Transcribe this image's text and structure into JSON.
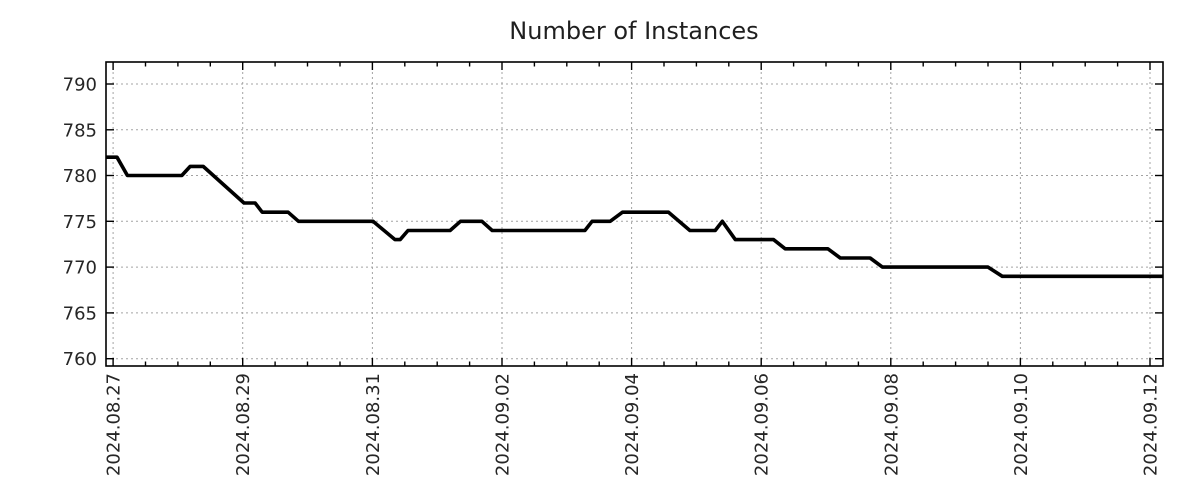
{
  "chart_data": {
    "type": "line",
    "title": "Number of Instances",
    "legend": null,
    "grid": {
      "show": true,
      "color": "#a3a3a3",
      "dash": "2 3"
    },
    "axis_color": "#000000",
    "x_axis": {
      "unit": "days since 2024.08.27 00:00",
      "range": [
        -0.11,
        16.2
      ],
      "major_tick_step_days": 2,
      "minor_tick_step_days": 0.5,
      "tick_label_days": [
        0,
        2,
        4,
        6,
        8,
        10,
        12,
        14,
        16
      ],
      "tick_labels": [
        "2024.08.27",
        "2024.08.29",
        "2024.08.31",
        "2024.09.02",
        "2024.09.04",
        "2024.09.06",
        "2024.09.08",
        "2024.09.10",
        "2024.09.12"
      ]
    },
    "y_axis": {
      "range": [
        759.2,
        792.4
      ],
      "ticks": [
        760,
        765,
        770,
        775,
        780,
        785,
        790
      ],
      "tick_labels": [
        "760",
        "765",
        "770",
        "775",
        "780",
        "785",
        "790"
      ]
    },
    "series": [
      {
        "name": "instances",
        "color": "#000000",
        "line_width": 3.6,
        "points": [
          [
            -0.11,
            782
          ],
          [
            0.06,
            782
          ],
          [
            0.22,
            780
          ],
          [
            1.06,
            780
          ],
          [
            1.19,
            781
          ],
          [
            1.39,
            781
          ],
          [
            2.02,
            777
          ],
          [
            2.19,
            777
          ],
          [
            2.3,
            776
          ],
          [
            2.7,
            776
          ],
          [
            2.86,
            775
          ],
          [
            4.01,
            775
          ],
          [
            4.35,
            773
          ],
          [
            4.43,
            773
          ],
          [
            4.55,
            774
          ],
          [
            5.2,
            774
          ],
          [
            5.36,
            775
          ],
          [
            5.69,
            775
          ],
          [
            5.85,
            774
          ],
          [
            7.28,
            774
          ],
          [
            7.39,
            775
          ],
          [
            7.67,
            775
          ],
          [
            7.86,
            776
          ],
          [
            8.57,
            776
          ],
          [
            8.9,
            774
          ],
          [
            9.29,
            774
          ],
          [
            9.4,
            775
          ],
          [
            9.6,
            773
          ],
          [
            10.19,
            773
          ],
          [
            10.37,
            772
          ],
          [
            11.03,
            772
          ],
          [
            11.22,
            771
          ],
          [
            11.68,
            771
          ],
          [
            11.87,
            770
          ],
          [
            13.5,
            770
          ],
          [
            13.72,
            769
          ],
          [
            16.2,
            769
          ]
        ]
      }
    ]
  }
}
